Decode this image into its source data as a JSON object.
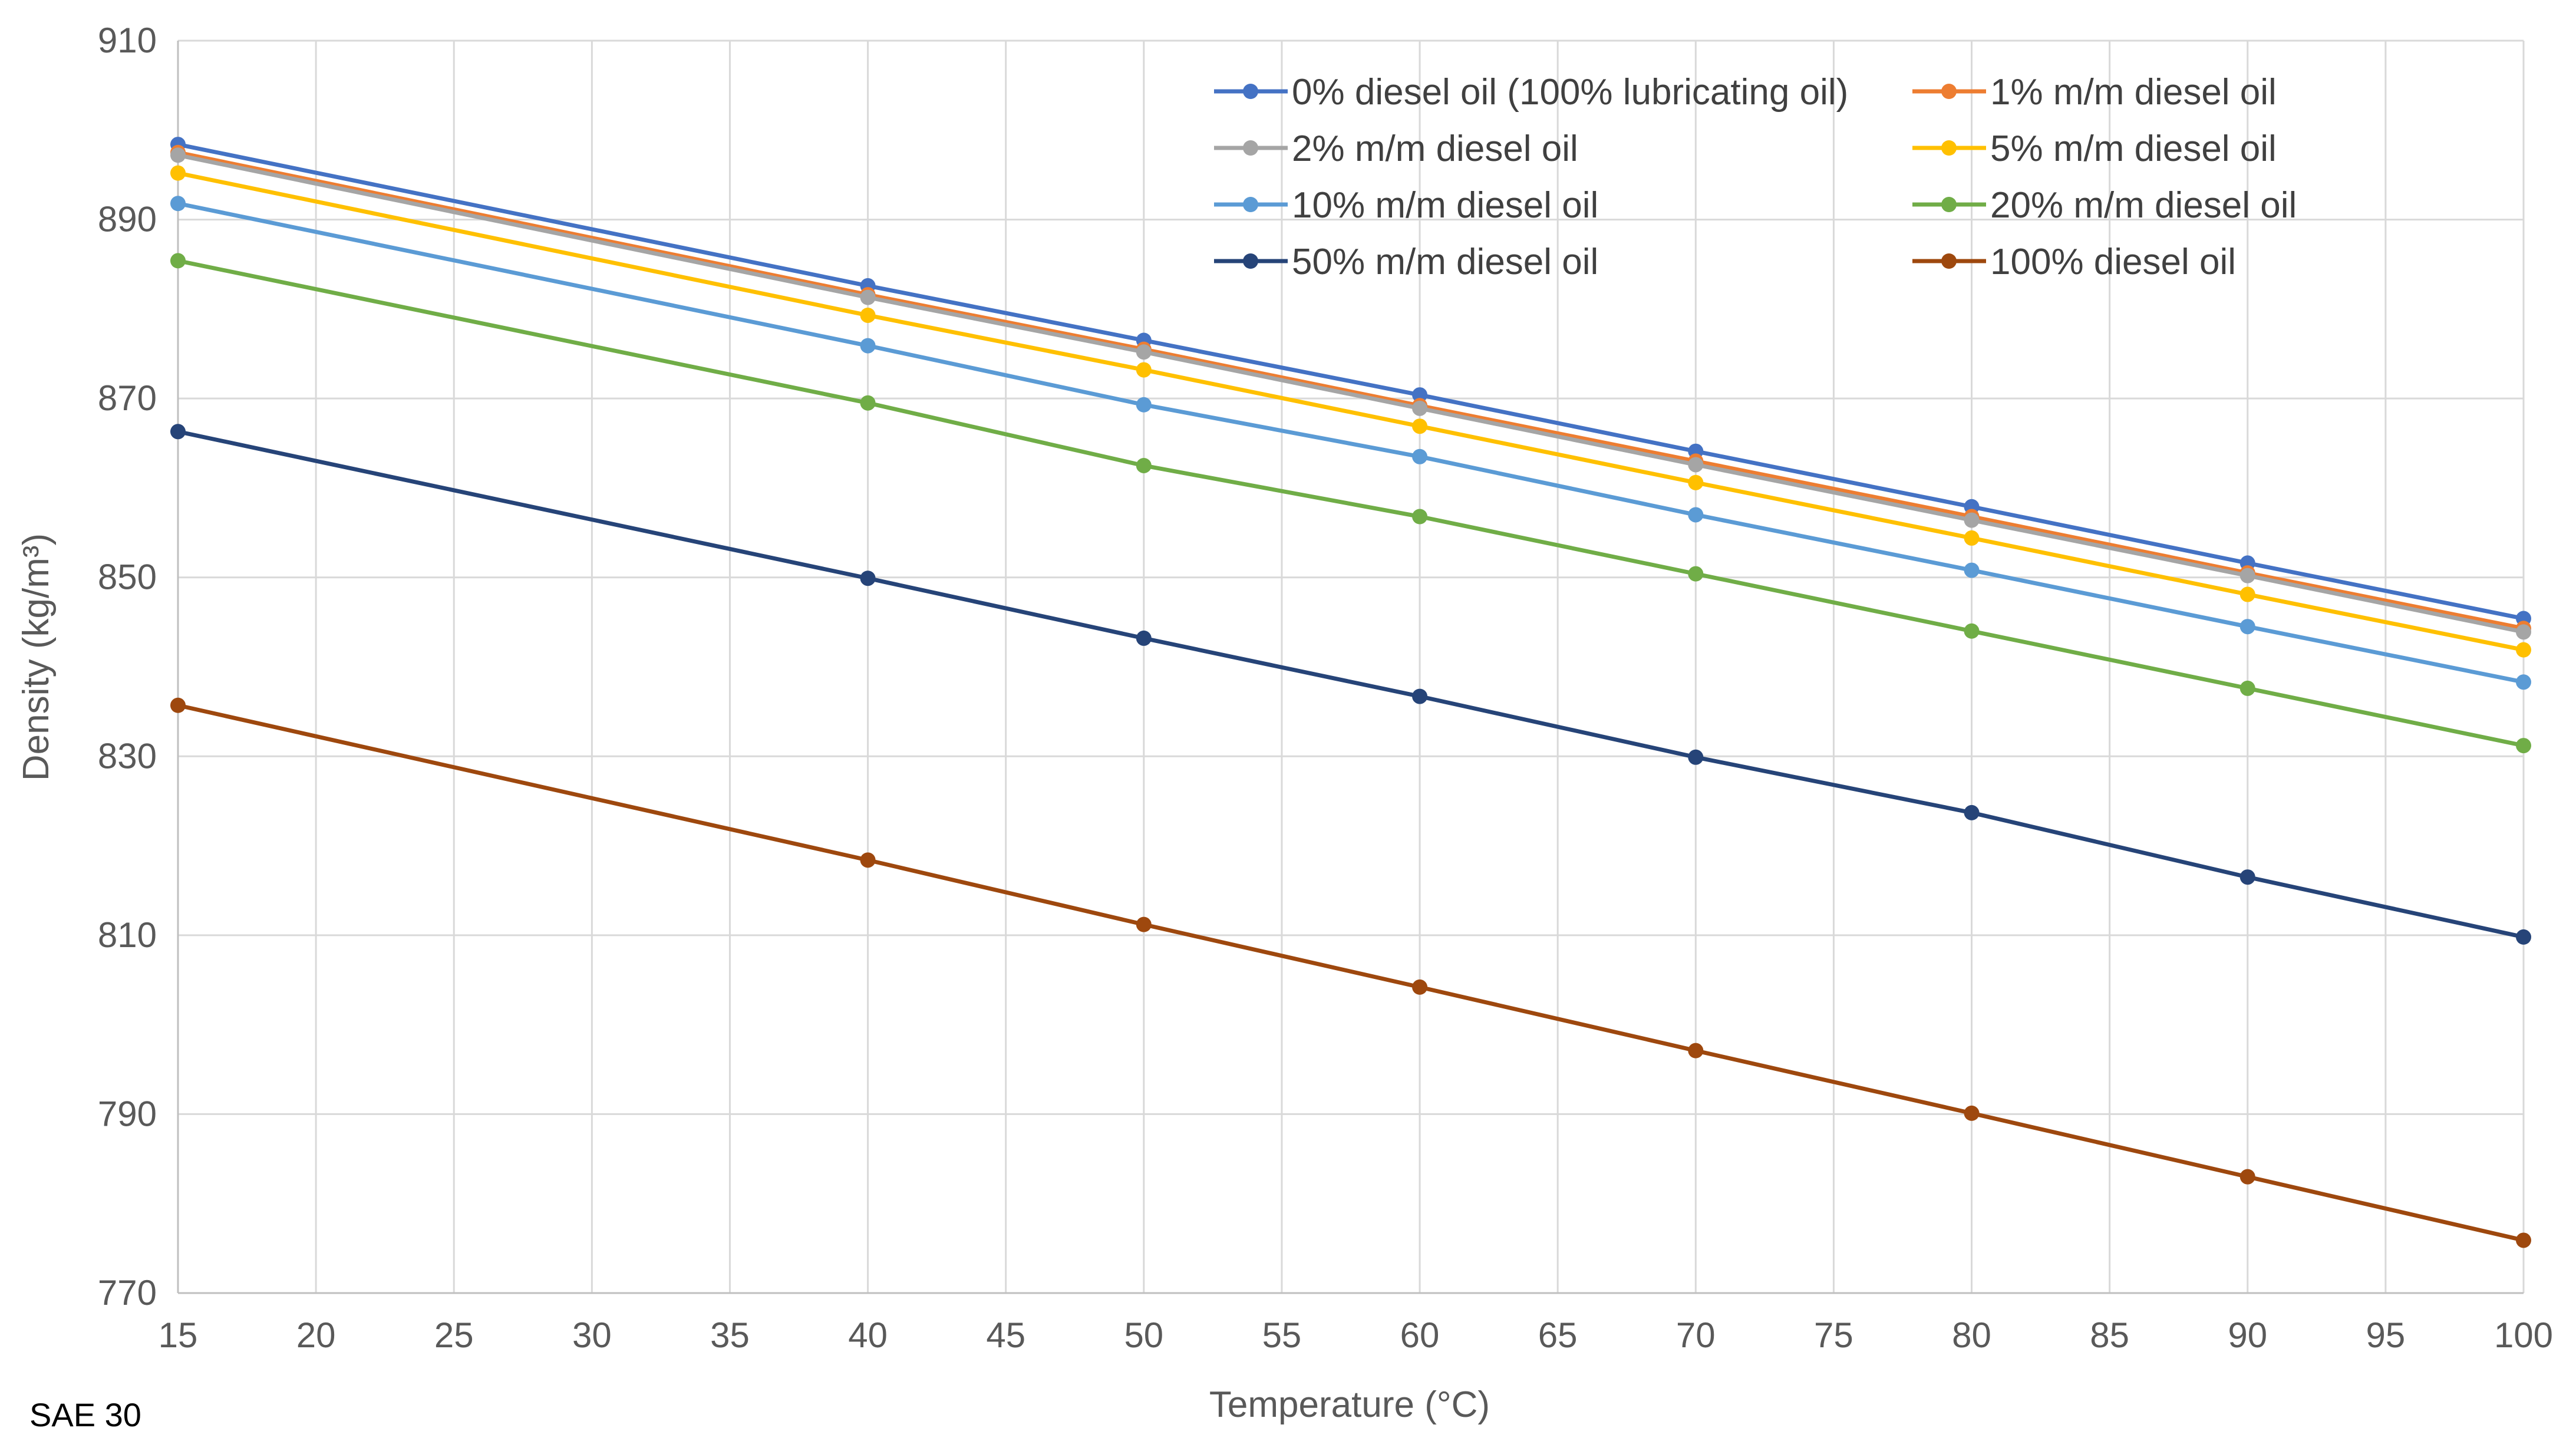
{
  "chart_data": {
    "type": "line",
    "xlabel": "Temperature (°C)",
    "ylabel": "Density (kg/m³)",
    "xlim": [
      15,
      100
    ],
    "ylim": [
      770,
      910
    ],
    "x_ticks": [
      15,
      20,
      25,
      30,
      35,
      40,
      45,
      50,
      55,
      60,
      65,
      70,
      75,
      80,
      85,
      90,
      95,
      100
    ],
    "y_ticks": [
      770,
      790,
      810,
      830,
      850,
      870,
      890,
      910
    ],
    "grid": true,
    "legend_position": "top-right",
    "x": [
      15,
      40,
      50,
      60,
      70,
      80,
      90,
      100
    ],
    "series": [
      {
        "name": "0% diesel oil (100% lubricating oil)",
        "color": "#4472C4",
        "values": [
          898.4,
          882.6,
          876.5,
          870.4,
          864.1,
          857.9,
          851.6,
          845.4
        ]
      },
      {
        "name": "1% m/m diesel oil",
        "color": "#ED7D31",
        "values": [
          897.5,
          881.6,
          875.5,
          869.2,
          863.0,
          856.8,
          850.5,
          844.3
        ]
      },
      {
        "name": "2% m/m diesel oil",
        "color": "#A5A5A5",
        "values": [
          897.2,
          881.3,
          875.2,
          868.9,
          862.6,
          856.4,
          850.2,
          843.9
        ]
      },
      {
        "name": "5% m/m diesel oil",
        "color": "#FFC000",
        "values": [
          895.2,
          879.3,
          873.2,
          866.9,
          860.6,
          854.4,
          848.1,
          841.9
        ]
      },
      {
        "name": "10% m/m diesel oil",
        "color": "#5B9BD5",
        "values": [
          891.8,
          875.9,
          869.3,
          863.5,
          857.0,
          850.8,
          844.5,
          838.3
        ]
      },
      {
        "name": "20% m/m diesel oil",
        "color": "#70AD47",
        "values": [
          885.4,
          869.5,
          862.5,
          856.8,
          850.4,
          844.0,
          837.6,
          831.2
        ]
      },
      {
        "name": "50% m/m diesel oil",
        "color": "#264478",
        "values": [
          866.3,
          849.9,
          843.2,
          836.7,
          829.9,
          823.7,
          816.5,
          809.8
        ]
      },
      {
        "name": "100% diesel oil",
        "color": "#9E480E",
        "values": [
          835.7,
          818.4,
          811.2,
          804.2,
          797.1,
          790.1,
          783.0,
          775.9
        ]
      }
    ]
  },
  "footnote": "SAE 30"
}
